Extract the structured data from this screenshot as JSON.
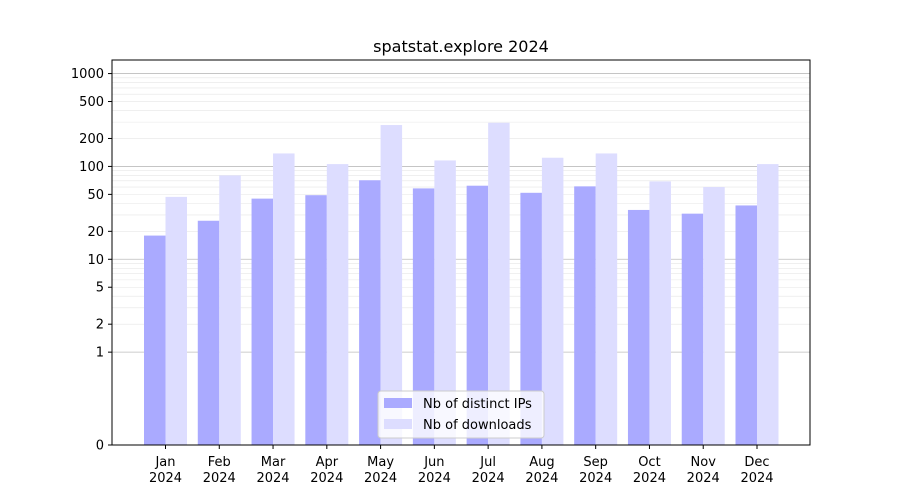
{
  "chart_data": {
    "type": "bar",
    "title": "spatstat.explore 2024",
    "xlabel": "",
    "ylabel": "",
    "y_scale": "symlog",
    "y_ticks": [
      0,
      1,
      2,
      5,
      10,
      20,
      50,
      100,
      200,
      500,
      1000
    ],
    "y_tick_labels": [
      "0",
      "1",
      "2",
      "5",
      "10",
      "20",
      "50",
      "100",
      "200",
      "500",
      "1000"
    ],
    "ylim": [
      0,
      1400
    ],
    "grid": true,
    "legend_position": "bottom-center",
    "categories": [
      {
        "month": "Jan",
        "year": "2024"
      },
      {
        "month": "Feb",
        "year": "2024"
      },
      {
        "month": "Mar",
        "year": "2024"
      },
      {
        "month": "Apr",
        "year": "2024"
      },
      {
        "month": "May",
        "year": "2024"
      },
      {
        "month": "Jun",
        "year": "2024"
      },
      {
        "month": "Jul",
        "year": "2024"
      },
      {
        "month": "Aug",
        "year": "2024"
      },
      {
        "month": "Sep",
        "year": "2024"
      },
      {
        "month": "Oct",
        "year": "2024"
      },
      {
        "month": "Nov",
        "year": "2024"
      },
      {
        "month": "Dec",
        "year": "2024"
      }
    ],
    "series": [
      {
        "name": "Nb of distinct IPs",
        "color": "#aaaaff",
        "values": [
          18,
          26,
          45,
          49,
          71,
          58,
          62,
          52,
          61,
          34,
          31,
          38
        ]
      },
      {
        "name": "Nb of downloads",
        "color": "#ddddff",
        "values": [
          47,
          80,
          138,
          106,
          279,
          116,
          295,
          124,
          138,
          69,
          60,
          106
        ]
      }
    ]
  }
}
